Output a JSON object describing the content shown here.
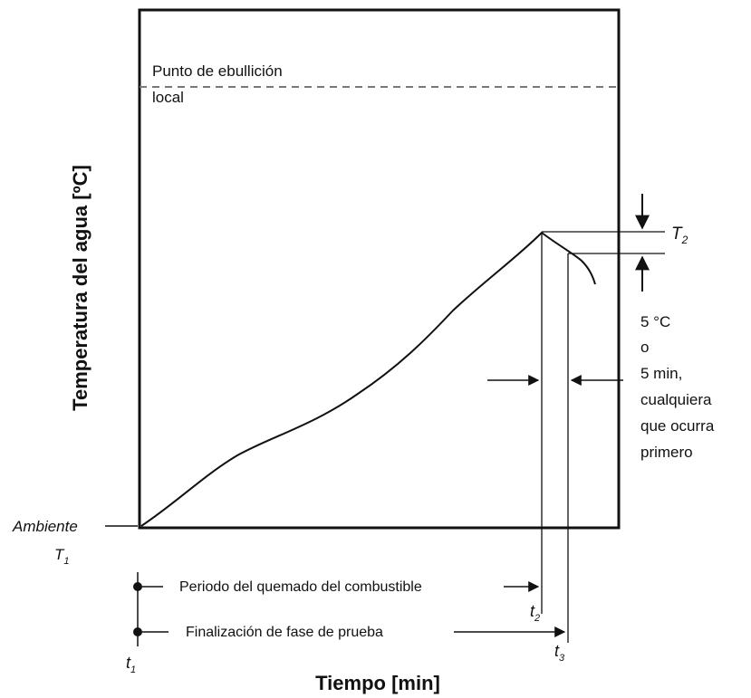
{
  "diagram": {
    "boiling_label_line1": "Punto de ebullición",
    "boiling_label_line2": "local",
    "y_axis_label": "Temperatura del agua [ºC]",
    "x_axis_label": "Tiempo [min]",
    "ambient_label": "Ambiente",
    "t1_temp_label": "T",
    "t1_temp_sub": "1",
    "t2_temp_label": "T",
    "t2_temp_sub": "2",
    "criterion_lines": [
      "5 °C",
      "o",
      "5 min,",
      "cualquiera",
      "que ocurra",
      "primero"
    ],
    "burn_period_label": "Periodo del quemado del combustible",
    "test_end_label": "Finalización de fase de prueba",
    "t1_time_label": "t",
    "t1_time_sub": "1",
    "t2_time_label": "t",
    "t2_time_sub": "2",
    "t3_time_label": "t",
    "t3_time_sub": "3"
  }
}
